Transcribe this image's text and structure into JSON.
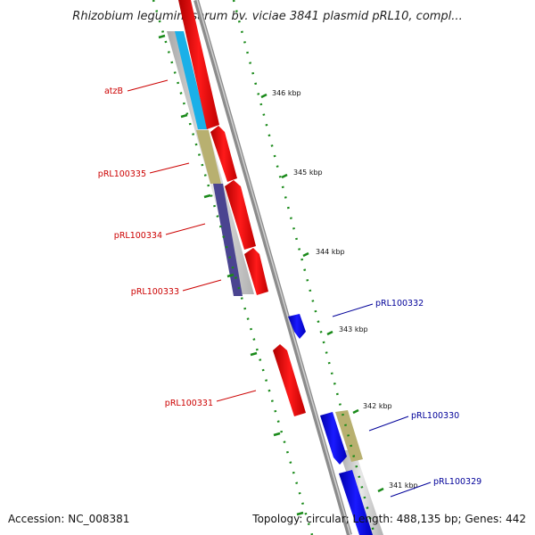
{
  "title": "Rhizobium leguminosarum bv. viciae 3841 plasmid pRL10, compl...",
  "footer": {
    "accession": "Accession: NC_008381",
    "summary": "Topology: circular; Length: 488,135 bp; Genes: 442"
  },
  "colors": {
    "forward_gene": "#ff0000",
    "reverse_gene": "#0000ee",
    "left_label": "#cc0000",
    "right_label": "#000099",
    "tick": "#1a8a1a",
    "backbone": "#8c8c8c"
  },
  "kbp_labels": [
    "346 kbp",
    "345 kbp",
    "344 kbp",
    "343 kbp",
    "342 kbp",
    "341 kbp"
  ],
  "gene_labels": [
    {
      "text": "atzB",
      "side": "left"
    },
    {
      "text": "pRL100335",
      "side": "left"
    },
    {
      "text": "pRL100334",
      "side": "left"
    },
    {
      "text": "pRL100333",
      "side": "left"
    },
    {
      "text": "pRL100331",
      "side": "left"
    },
    {
      "text": "pRL100332",
      "side": "right"
    },
    {
      "text": "pRL100330",
      "side": "right"
    },
    {
      "text": "pRL100329",
      "side": "right"
    }
  ]
}
